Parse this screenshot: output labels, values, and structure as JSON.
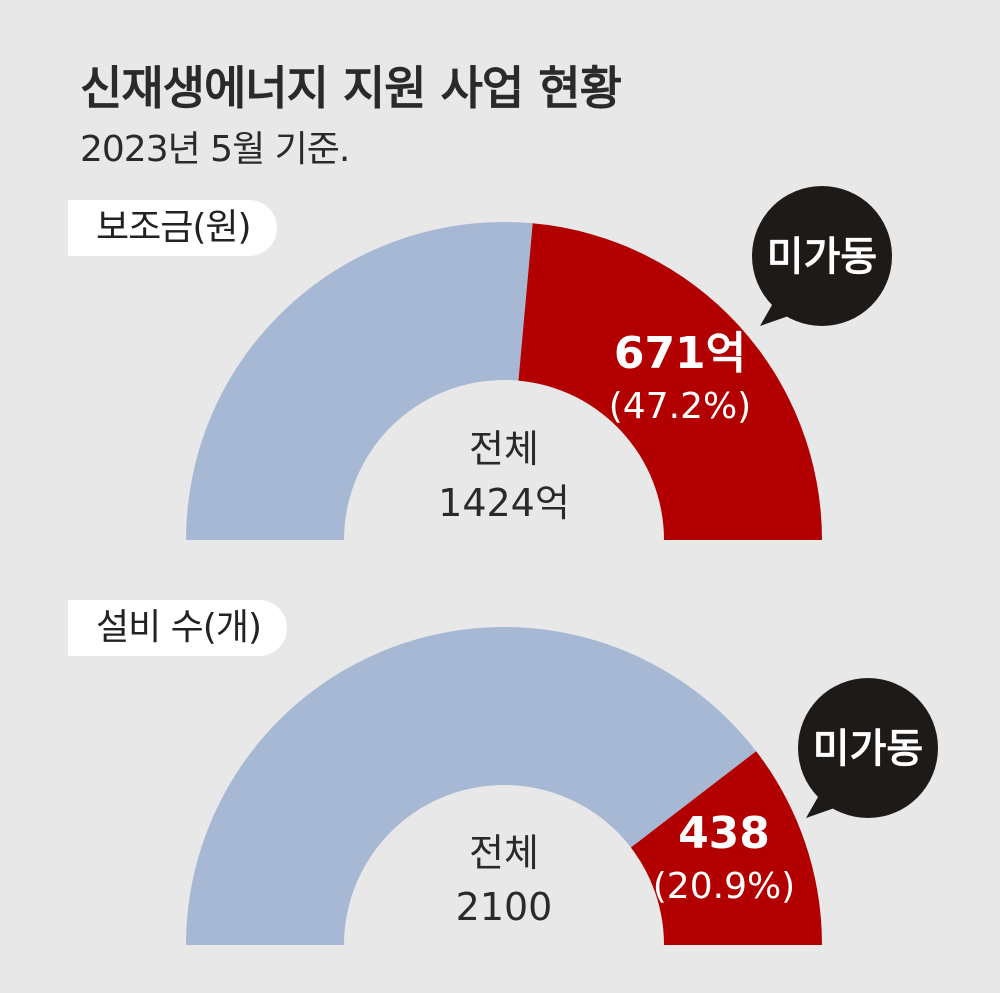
{
  "header": {
    "title": "신재생에너지 지원 사업 현황",
    "subtitle": "2023년 5월 기준."
  },
  "colors": {
    "background": "#e8e8e8",
    "total": "#a6b8d4",
    "unused": "#b20000",
    "bubble": "#1e1a17"
  },
  "chart_data": [
    {
      "type": "pie",
      "title": "보조금(원)",
      "shape": "semicircle-donut",
      "total": 1424,
      "total_text": "1424억",
      "center_label": "전체",
      "slices": [
        {
          "name": "미가동",
          "value": 671,
          "percent": 47.2,
          "value_text": "671억",
          "percent_text": "(47.2%)"
        }
      ],
      "callout": "미가동"
    },
    {
      "type": "pie",
      "title": "설비 수(개)",
      "shape": "semicircle-donut",
      "total": 2100,
      "total_text": "2100",
      "center_label": "전체",
      "slices": [
        {
          "name": "미가동",
          "value": 438,
          "percent": 20.9,
          "value_text": "438",
          "percent_text": "(20.9%)"
        }
      ],
      "callout": "미가동"
    }
  ]
}
